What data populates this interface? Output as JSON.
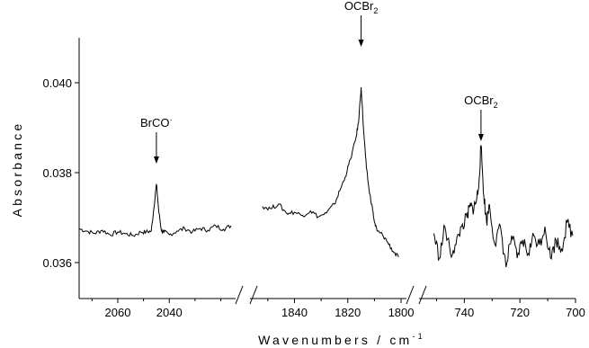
{
  "chart_data": {
    "type": "line",
    "title": "",
    "xlabel": "Wavenumbers / cm",
    "xlabel_superscript": "-1",
    "ylabel": "Absorbance",
    "ylim": [
      0.0352,
      0.041
    ],
    "grid": false,
    "x_axis_breaks": true,
    "panels": [
      {
        "xlim": [
          2075,
          2016
        ],
        "xticks": [
          2060,
          2040
        ],
        "series": {
          "x": [
            2075,
            2072,
            2069,
            2066,
            2063,
            2060,
            2057,
            2054,
            2051,
            2049,
            2047,
            2046,
            2045,
            2044,
            2043,
            2042,
            2040,
            2037,
            2034,
            2031,
            2028,
            2025,
            2022,
            2019,
            2016
          ],
          "y": [
            0.03675,
            0.0367,
            0.03665,
            0.03672,
            0.03662,
            0.03668,
            0.03664,
            0.0366,
            0.03668,
            0.03668,
            0.0367,
            0.0372,
            0.03775,
            0.0371,
            0.0367,
            0.03668,
            0.03662,
            0.0367,
            0.03676,
            0.03668,
            0.03676,
            0.03672,
            0.03682,
            0.03674,
            0.03682
          ]
        }
      },
      {
        "xlim": [
          1855,
          1799
        ],
        "xticks": [
          1840,
          1820,
          1800
        ],
        "series": {
          "x": [
            1852,
            1849,
            1846,
            1843,
            1840,
            1837,
            1834,
            1831,
            1828,
            1825,
            1823,
            1821,
            1819,
            1817,
            1816,
            1815,
            1814,
            1813,
            1812,
            1811,
            1810,
            1809,
            1807,
            1805,
            1803,
            1801
          ],
          "y": [
            0.03725,
            0.0372,
            0.0373,
            0.0371,
            0.03712,
            0.03705,
            0.03715,
            0.03702,
            0.0371,
            0.0373,
            0.0376,
            0.0379,
            0.0383,
            0.03875,
            0.0391,
            0.0399,
            0.0389,
            0.0381,
            0.0376,
            0.0373,
            0.0369,
            0.0367,
            0.03662,
            0.03645,
            0.03625,
            0.03612
          ]
        }
      },
      {
        "xlim": [
          755,
          700
        ],
        "xticks": [
          740,
          720,
          700
        ],
        "series": {
          "x": [
            751,
            749,
            747,
            745,
            743,
            741,
            739,
            738,
            737,
            736,
            735,
            734,
            733,
            732,
            731,
            729,
            727,
            725,
            723,
            721,
            719,
            717,
            715,
            713,
            711,
            709,
            707,
            705,
            703,
            701
          ],
          "y": [
            0.03665,
            0.0361,
            0.0368,
            0.0362,
            0.0364,
            0.0368,
            0.037,
            0.03725,
            0.0372,
            0.0373,
            0.0376,
            0.0386,
            0.0375,
            0.0369,
            0.0373,
            0.0364,
            0.0368,
            0.0359,
            0.0366,
            0.0361,
            0.0365,
            0.0362,
            0.0366,
            0.0364,
            0.0368,
            0.0361,
            0.0365,
            0.0363,
            0.0369,
            0.0366
          ]
        }
      }
    ],
    "yticks": [
      "0.036",
      "0.038",
      "0.040"
    ],
    "annotations": [
      {
        "text": "BrCO",
        "sup": "·",
        "panel": 0,
        "x": 2045,
        "y_top": 0.0382
      },
      {
        "text": "OCBr",
        "sub": "2",
        "panel": 1,
        "x": 1815,
        "y_top": 0.0408
      },
      {
        "text": "OCBr",
        "sub": "2",
        "panel": 2,
        "x": 734,
        "y_top": 0.0387
      }
    ]
  }
}
